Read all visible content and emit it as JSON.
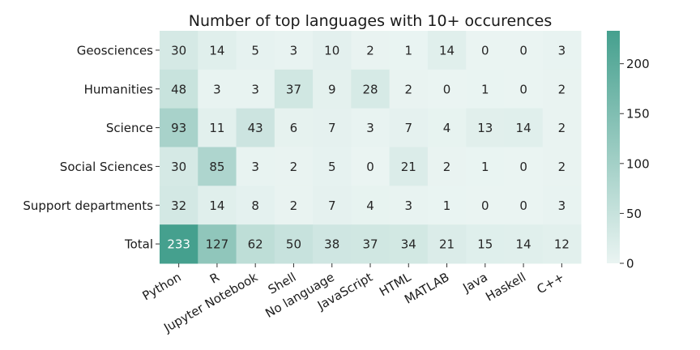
{
  "chart_data": {
    "type": "heatmap",
    "title": "Number of top languages with 10+ occurences",
    "xlabel": "",
    "ylabel": "",
    "rows": [
      "Geosciences",
      "Humanities",
      "Science",
      "Social Sciences",
      "Support departments",
      "Total"
    ],
    "columns": [
      "Python",
      "R",
      "Jupyter Notebook",
      "Shell",
      "No language",
      "JavaScript",
      "HTML",
      "MATLAB",
      "Java",
      "Haskell",
      "C++"
    ],
    "values": [
      [
        30,
        14,
        5,
        3,
        10,
        2,
        1,
        14,
        0,
        0,
        3
      ],
      [
        48,
        3,
        3,
        37,
        9,
        28,
        2,
        0,
        1,
        0,
        2
      ],
      [
        93,
        11,
        43,
        6,
        7,
        3,
        7,
        4,
        13,
        14,
        2
      ],
      [
        30,
        85,
        3,
        2,
        5,
        0,
        21,
        2,
        1,
        0,
        2
      ],
      [
        32,
        14,
        8,
        2,
        7,
        4,
        3,
        1,
        0,
        0,
        3
      ],
      [
        233,
        127,
        62,
        50,
        38,
        37,
        34,
        21,
        15,
        14,
        12
      ]
    ],
    "colorbar": {
      "range": [
        0,
        233
      ],
      "ticks": [
        0,
        50,
        100,
        150,
        200
      ],
      "color_low": "#eaf4f2",
      "color_high": "#45a08e"
    },
    "grid": false,
    "legend": "colorbar-right"
  }
}
